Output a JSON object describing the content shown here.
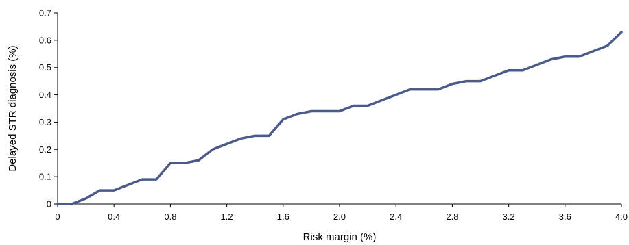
{
  "chart_data": {
    "type": "line",
    "title": "",
    "xlabel": "Risk margin (%)",
    "ylabel": "Delayed STR diagnosis (%)",
    "xlim": [
      0,
      4.0
    ],
    "ylim": [
      0,
      0.7
    ],
    "xticks": [
      "0",
      "0.4",
      "0.8",
      "1.2",
      "1.6",
      "2.0",
      "2.4",
      "2.8",
      "3.2",
      "3.6",
      "4.0"
    ],
    "yticks": [
      "0",
      "0.1",
      "0.2",
      "0.3",
      "0.4",
      "0.5",
      "0.6",
      "0.7"
    ],
    "grid": false,
    "legend": "none",
    "line_color": "#4a5a8a",
    "series": [
      {
        "x": [
          0,
          0.1,
          0.2,
          0.3,
          0.4,
          0.5,
          0.6,
          0.7,
          0.8,
          0.9,
          1.0,
          1.1,
          1.2,
          1.3,
          1.4,
          1.5,
          1.6,
          1.7,
          1.8,
          1.9,
          2.0,
          2.1,
          2.2,
          2.3,
          2.4,
          2.5,
          2.6,
          2.7,
          2.8,
          2.9,
          3.0,
          3.1,
          3.2,
          3.3,
          3.4,
          3.5,
          3.6,
          3.7,
          3.8,
          3.9,
          4.0
        ],
        "values": [
          0,
          0,
          0.02,
          0.05,
          0.05,
          0.07,
          0.09,
          0.09,
          0.15,
          0.15,
          0.16,
          0.2,
          0.22,
          0.24,
          0.25,
          0.25,
          0.31,
          0.33,
          0.34,
          0.34,
          0.34,
          0.36,
          0.36,
          0.38,
          0.4,
          0.42,
          0.42,
          0.42,
          0.44,
          0.45,
          0.45,
          0.47,
          0.49,
          0.49,
          0.51,
          0.53,
          0.54,
          0.54,
          0.56,
          0.58,
          0.63
        ]
      }
    ]
  }
}
